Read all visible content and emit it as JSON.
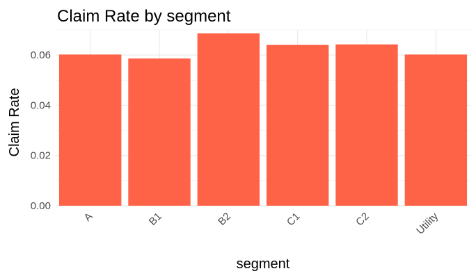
{
  "chart_data": {
    "type": "bar",
    "title": "Claim Rate by segment",
    "xlabel": "segment",
    "ylabel": "Claim Rate",
    "categories": [
      "A",
      "B1",
      "B2",
      "C1",
      "C2",
      "Utility"
    ],
    "values": [
      0.0602,
      0.0586,
      0.0686,
      0.064,
      0.0642,
      0.0602
    ],
    "ylim": [
      0,
      0.07
    ],
    "yticks": [
      0,
      0.02,
      0.04,
      0.06
    ],
    "ytick_labels": [
      "0.00",
      "0.02",
      "0.04",
      "0.06"
    ],
    "grid": true,
    "legend": "none",
    "bar_color": "#ff6347",
    "gridline_color": "#ebebeb"
  }
}
